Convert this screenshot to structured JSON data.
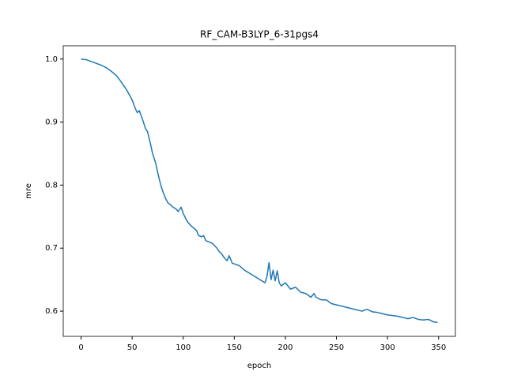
{
  "chart_data": {
    "type": "line",
    "title": "RF_CAM-B3LYP_6-31pgs4",
    "x_label": "epoch",
    "y_label": "mre",
    "x": [
      0,
      5,
      10,
      15,
      20,
      25,
      30,
      35,
      40,
      45,
      50,
      53,
      55,
      57,
      60,
      63,
      65,
      68,
      70,
      73,
      75,
      78,
      80,
      83,
      85,
      88,
      90,
      93,
      95,
      98,
      100,
      103,
      105,
      108,
      110,
      113,
      115,
      118,
      120,
      122,
      125,
      128,
      130,
      133,
      135,
      138,
      140,
      143,
      145,
      148,
      150,
      155,
      160,
      165,
      170,
      175,
      180,
      182,
      184,
      186,
      188,
      190,
      192,
      194,
      196,
      200,
      205,
      210,
      215,
      220,
      225,
      228,
      230,
      235,
      240,
      245,
      250,
      255,
      260,
      265,
      270,
      275,
      280,
      285,
      290,
      295,
      300,
      305,
      310,
      315,
      320,
      325,
      330,
      335,
      340,
      345,
      349
    ],
    "series": [
      {
        "name": "mre",
        "color": "#1f77b4",
        "values": [
          1.0,
          0.999,
          0.996,
          0.993,
          0.99,
          0.986,
          0.98,
          0.973,
          0.962,
          0.95,
          0.935,
          0.922,
          0.915,
          0.918,
          0.905,
          0.89,
          0.885,
          0.865,
          0.85,
          0.835,
          0.82,
          0.8,
          0.79,
          0.778,
          0.772,
          0.768,
          0.765,
          0.762,
          0.758,
          0.765,
          0.755,
          0.745,
          0.74,
          0.735,
          0.732,
          0.728,
          0.72,
          0.718,
          0.72,
          0.712,
          0.71,
          0.708,
          0.705,
          0.7,
          0.695,
          0.69,
          0.685,
          0.68,
          0.688,
          0.676,
          0.675,
          0.672,
          0.665,
          0.66,
          0.655,
          0.65,
          0.645,
          0.655,
          0.677,
          0.65,
          0.665,
          0.648,
          0.664,
          0.645,
          0.64,
          0.645,
          0.635,
          0.638,
          0.63,
          0.628,
          0.622,
          0.628,
          0.622,
          0.618,
          0.618,
          0.612,
          0.61,
          0.608,
          0.606,
          0.604,
          0.602,
          0.6,
          0.603,
          0.599,
          0.598,
          0.596,
          0.594,
          0.593,
          0.592,
          0.59,
          0.588,
          0.59,
          0.587,
          0.586,
          0.587,
          0.583,
          0.582
        ]
      }
    ],
    "xlim": [
      -17.45,
      366.45
    ],
    "xticks": [
      0,
      50,
      100,
      150,
      200,
      250,
      300,
      350
    ],
    "ylim": [
      0.56,
      1.021
    ],
    "yticks": [
      0.6,
      0.7,
      0.8,
      0.9,
      {
        "value": 1,
        "label": "1.0"
      }
    ]
  }
}
